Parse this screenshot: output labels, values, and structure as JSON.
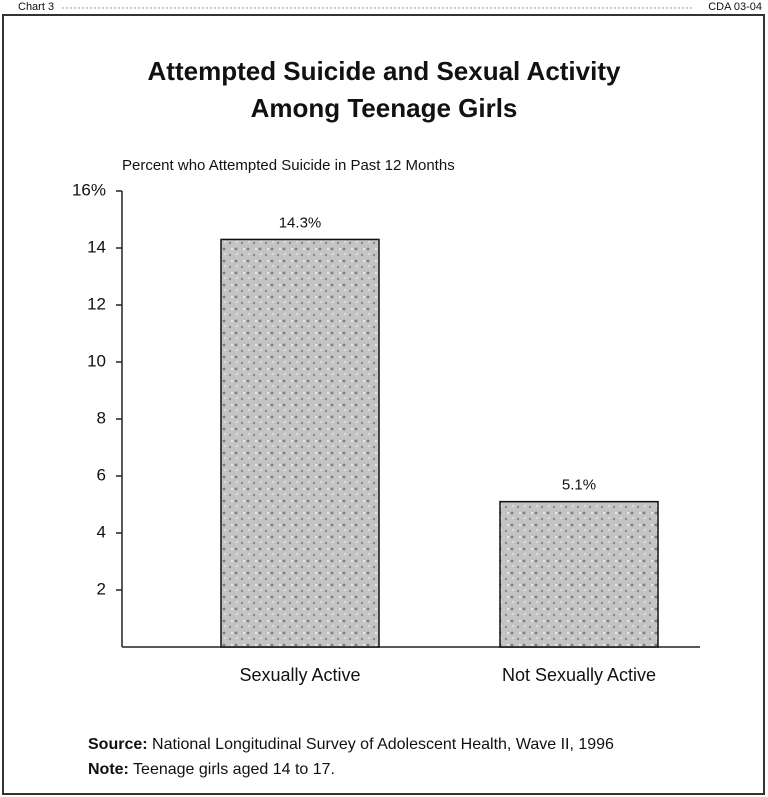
{
  "header": {
    "left": "Chart 3",
    "right": "CDA 03-04"
  },
  "chart_data": {
    "type": "bar",
    "title": [
      "Attempted Suicide and Sexual Activity",
      "Among Teenage Girls"
    ],
    "y_label": "Percent who Attempted Suicide in Past 12 Months",
    "categories": [
      "Sexually Active",
      "Not Sexually Active"
    ],
    "values": [
      14.3,
      5.1
    ],
    "value_labels": [
      "14.3%",
      "5.1%"
    ],
    "color": "#b8b8b8",
    "ylim": [
      0,
      16
    ],
    "yticks": [
      2,
      4,
      6,
      8,
      10,
      12,
      14,
      {
        "value": 16,
        "label": "16%"
      }
    ],
    "grid": false
  },
  "footer": {
    "source_label": "Source:",
    "source": "National Longitudinal Survey of Adolescent Health, Wave II, 1996",
    "note_label": "Note:",
    "note": "Teenage girls aged 14 to 17."
  }
}
